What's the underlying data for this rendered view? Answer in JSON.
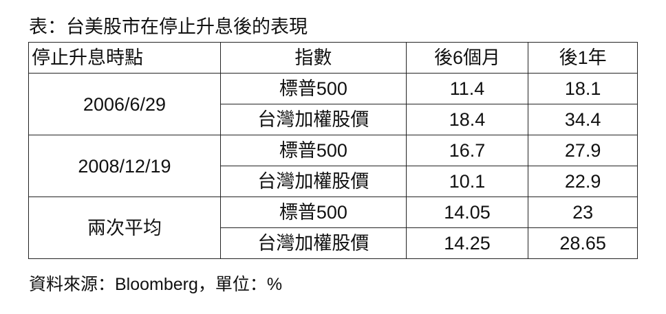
{
  "title": "表：台美股市在停止升息後的表現",
  "table": {
    "headers": [
      "停止升息時點",
      "指數",
      "後6個月",
      "後1年"
    ],
    "groups": [
      {
        "date": "2006/6/29",
        "rows": [
          {
            "index": "標普500",
            "six_months": "11.4",
            "one_year": "18.1"
          },
          {
            "index": "台灣加權股價",
            "six_months": "18.4",
            "one_year": "34.4"
          }
        ]
      },
      {
        "date": "2008/12/19",
        "rows": [
          {
            "index": "標普500",
            "six_months": "16.7",
            "one_year": "27.9"
          },
          {
            "index": "台灣加權股價",
            "six_months": "10.1",
            "one_year": "22.9"
          }
        ]
      },
      {
        "date": "兩次平均",
        "rows": [
          {
            "index": "標普500",
            "six_months": "14.05",
            "one_year": "23"
          },
          {
            "index": "台灣加權股價",
            "six_months": "14.25",
            "one_year": "28.65"
          }
        ]
      }
    ]
  },
  "source": "資料來源：Bloomberg，單位：%"
}
